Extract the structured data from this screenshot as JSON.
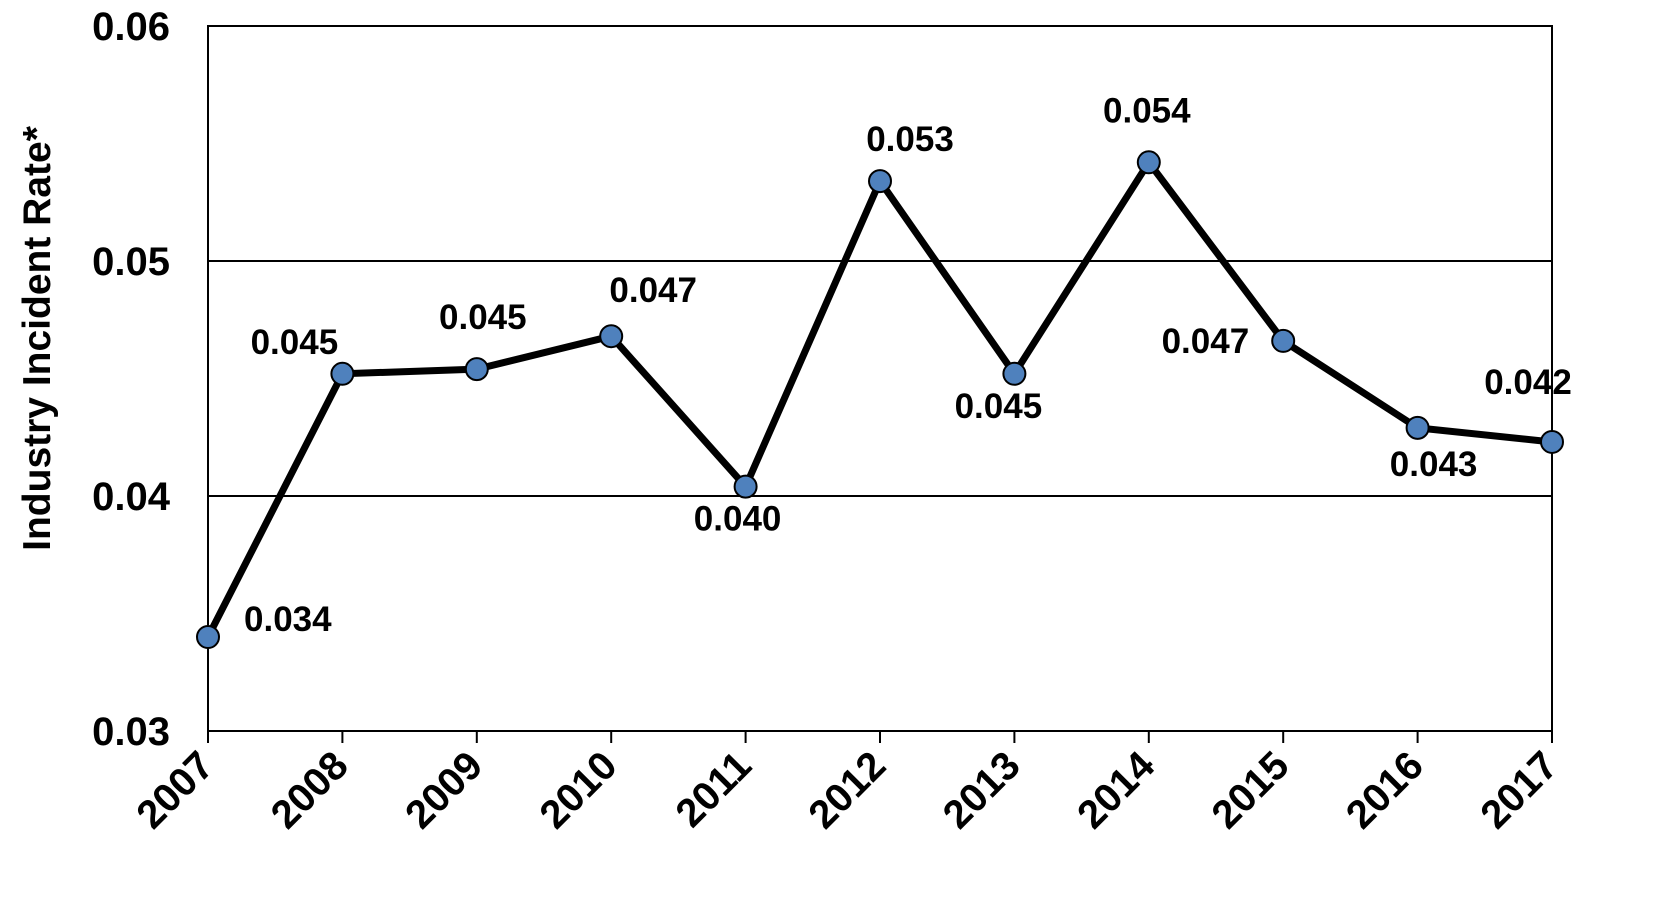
{
  "chart_data": {
    "type": "line",
    "title": "",
    "xlabel": "",
    "ylabel": "Industry Incident Rate*",
    "ylim": [
      0.03,
      0.06
    ],
    "yticks": [
      0.03,
      0.04,
      0.05,
      0.06
    ],
    "ytick_labels": [
      "0.03",
      "0.04",
      "0.05",
      "0.06"
    ],
    "grid": {
      "horizontal": true,
      "vertical": false
    },
    "legend": "none",
    "categories": [
      "2007",
      "2008",
      "2009",
      "2010",
      "2011",
      "2012",
      "2013",
      "2014",
      "2015",
      "2016",
      "2017"
    ],
    "series": [
      {
        "values": [
          0.034,
          0.0452,
          0.0454,
          0.0468,
          0.0404,
          0.0534,
          0.0452,
          0.0542,
          0.0466,
          0.0429,
          0.0423
        ],
        "data_labels": [
          "0.034",
          "0.045",
          "0.045",
          "0.047",
          "0.040",
          "0.053",
          "0.045",
          "0.054",
          "0.047",
          "0.043",
          "0.042"
        ],
        "line_color": "#000000",
        "marker_color": "#4f81bd"
      }
    ]
  }
}
